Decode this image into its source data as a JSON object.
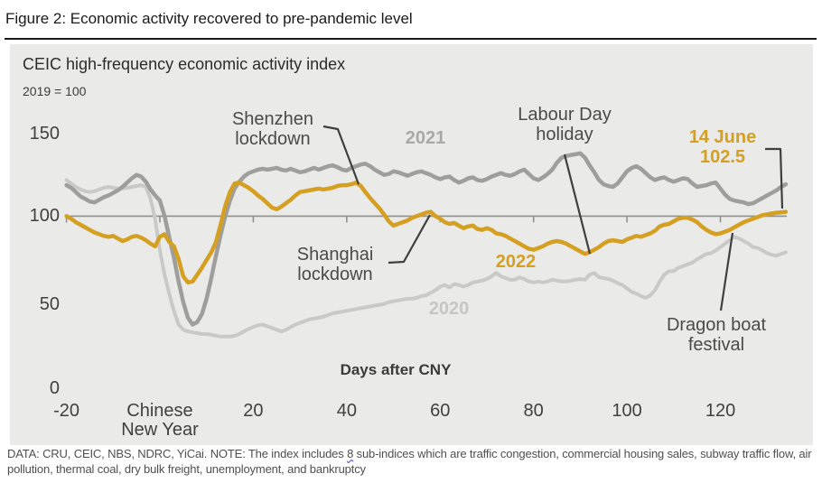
{
  "figure": {
    "title": "Figure 2: Economic activity recovered to pre-pandemic level"
  },
  "footer": {
    "pre": "DATA: CRU, CEIC, NBS, NDRC, YiCai. NOTE: The index includes ",
    "highlight": "8",
    "post": " sub-indices which are traffic congestion, commercial housing sales, subway traffic flow, air pollution, thermal coal, dry bulk freight, unemployment, and bankruptcy"
  },
  "colors": {
    "gold": "#d5a021",
    "gray_2021": "#9e9e9c",
    "gray_2020": "#c9c9c7",
    "axis": "#8f8f8d",
    "annotation_line": "#3f3f3f",
    "panel_bg": "#eaeae8"
  },
  "chart_data": {
    "type": "line",
    "title": "CEIC high-frequency economic activity index",
    "subtitle": "2019 = 100",
    "xlabel": "Days after CNY",
    "x_start": -20,
    "x_step": 1,
    "x_range": [
      -20,
      134
    ],
    "y_range": [
      0,
      157
    ],
    "baseline": 100,
    "grid": false,
    "legend_position": "inline-labels",
    "y_ticks": [
      "150",
      "100",
      "50",
      "0"
    ],
    "y_tick_values": [
      150,
      100,
      50,
      0
    ],
    "x_ticks": [
      {
        "value": -20,
        "label": "-20"
      },
      {
        "value": 0,
        "label": "Chinese\nNew Year"
      },
      {
        "value": 20,
        "label": "20"
      },
      {
        "value": 40,
        "label": "40"
      },
      {
        "value": 60,
        "label": "60"
      },
      {
        "value": 80,
        "label": "80"
      },
      {
        "value": 100,
        "label": "100"
      },
      {
        "value": 120,
        "label": "120"
      }
    ],
    "series": [
      {
        "name": "2020",
        "color": "#c9c9c7",
        "width": 4,
        "values": [
          121,
          119,
          117,
          115.5,
          114.5,
          114,
          114.5,
          115.5,
          116.5,
          117,
          116.5,
          116,
          116,
          116.5,
          117,
          117.5,
          118,
          117,
          110,
          98,
          80,
          66,
          55,
          45,
          37,
          34,
          33,
          32.5,
          32,
          31.5,
          31.5,
          31,
          30.5,
          30,
          30,
          30,
          30.5,
          31.5,
          33,
          34.5,
          35.5,
          36.5,
          37,
          36,
          35,
          34,
          33,
          34,
          35.5,
          37,
          38,
          39,
          40,
          40.5,
          41,
          41.5,
          42.5,
          43.5,
          44,
          44.5,
          45,
          45.5,
          46,
          46.5,
          47,
          47.5,
          48,
          48.5,
          49,
          50,
          50.5,
          51,
          51.5,
          52,
          52,
          52.5,
          53.5,
          54,
          55.5,
          57,
          59,
          60,
          58.5,
          60.5,
          60,
          59,
          60,
          61.5,
          62,
          62.5,
          63.5,
          65,
          67,
          65,
          64,
          63,
          63,
          64.5,
          63.5,
          62,
          61.5,
          62,
          61.5,
          62,
          63,
          62.5,
          62,
          62,
          62.5,
          63,
          63.5,
          63,
          66,
          67,
          64.5,
          64,
          63.5,
          62.5,
          61,
          60,
          58,
          56,
          55,
          53.5,
          52.5,
          54,
          57,
          62,
          66,
          68,
          68,
          70,
          71,
          72,
          73,
          75,
          76.5,
          78,
          78.5,
          80,
          82,
          84,
          86,
          88,
          87,
          85.5,
          84,
          82,
          81.5,
          80,
          78.5,
          77.5,
          77,
          78,
          79
        ]
      },
      {
        "name": "2021",
        "color": "#9e9e9c",
        "width": 4.5,
        "values": [
          118,
          116.5,
          114,
          111.5,
          110,
          108.5,
          108,
          109.5,
          111,
          112,
          113.5,
          115,
          117,
          119.5,
          122,
          124,
          123,
          120,
          115.5,
          112,
          109,
          100,
          88,
          76,
          62,
          50,
          41,
          37,
          38.5,
          43,
          52,
          64,
          77,
          89,
          100,
          109,
          116,
          120,
          123,
          125,
          126,
          127,
          127.5,
          127,
          127.5,
          128,
          127,
          126.5,
          127.5,
          126.5,
          125.5,
          126,
          127,
          128,
          127,
          128,
          129,
          129.5,
          128.5,
          127,
          126.5,
          128,
          129,
          130,
          130.5,
          129,
          127,
          125.5,
          124,
          124.5,
          126,
          125.5,
          124.5,
          123.5,
          124.5,
          125.5,
          126,
          125,
          124,
          122.5,
          121.5,
          122.5,
          123,
          121,
          119.5,
          120.5,
          122,
          122.5,
          121,
          120.5,
          121.5,
          123,
          124,
          125,
          124,
          123.5,
          124.5,
          126,
          127,
          124.5,
          122,
          121,
          122.5,
          124.5,
          127,
          131,
          134,
          135,
          135.5,
          136,
          136.5,
          134,
          129.5,
          125.5,
          121,
          118.5,
          117.5,
          117,
          119,
          122.5,
          126,
          128,
          129,
          127.5,
          125,
          122.5,
          121,
          122,
          122.5,
          121,
          120,
          121,
          122,
          121.5,
          119,
          117,
          117.5,
          118,
          119,
          119.5,
          116,
          112.5,
          110,
          109,
          108.5,
          108,
          107,
          107.5,
          109,
          110.5,
          112,
          113.5,
          115,
          117,
          118.5
        ]
      },
      {
        "name": "2022",
        "color": "#d5a021",
        "width": 4.5,
        "values": [
          100,
          98.5,
          96.5,
          95,
          93.5,
          92,
          90.5,
          89.5,
          88.5,
          88,
          88.5,
          87,
          85.5,
          86.5,
          88,
          88.5,
          87.5,
          86,
          84,
          82.5,
          88,
          89.5,
          85,
          82.5,
          75,
          65,
          61.5,
          62,
          66,
          70,
          74.5,
          79,
          85,
          95,
          106,
          114,
          119,
          119.5,
          118,
          116.5,
          114.5,
          112,
          110,
          107.5,
          105,
          104,
          105.5,
          107.5,
          109.5,
          112,
          114,
          114.5,
          115,
          115.5,
          116,
          115.5,
          116,
          116.5,
          117.5,
          118,
          118,
          118.5,
          119.5,
          117.5,
          114,
          110.5,
          107.5,
          104.5,
          101,
          97,
          94.5,
          95.5,
          96.5,
          97.5,
          99,
          100,
          101,
          102,
          102.5,
          100,
          98.5,
          96.5,
          95.5,
          96,
          94.5,
          93,
          94,
          94.5,
          92.5,
          92,
          93,
          92,
          90,
          89.5,
          88.5,
          87,
          85.5,
          84,
          82.5,
          81,
          80.5,
          81.5,
          82.5,
          84,
          85,
          85.5,
          85,
          84,
          82.5,
          81,
          79.5,
          78,
          79,
          80.5,
          82,
          84,
          85.5,
          86,
          85.5,
          85,
          86.5,
          87.5,
          88.5,
          88,
          89,
          90,
          91.5,
          94,
          95,
          95.5,
          97,
          98.5,
          99,
          99,
          98,
          96.5,
          94,
          92,
          90.5,
          89.5,
          90,
          91,
          92,
          93.5,
          95,
          96.5,
          97.5,
          98.5,
          99.5,
          100.5,
          101,
          101.5,
          102,
          102.2,
          102.5
        ]
      }
    ],
    "annotations": [
      {
        "id": "shenzhen",
        "lines": [
          "Shenzhen",
          "lockdown"
        ],
        "emphasis": false
      },
      {
        "id": "labour-day",
        "lines": [
          "Labour Day",
          "holiday"
        ],
        "emphasis": false
      },
      {
        "id": "june14",
        "lines": [
          "14 June",
          "102.5"
        ],
        "emphasis": true
      },
      {
        "id": "shanghai",
        "lines": [
          "Shanghai",
          "lockdown"
        ],
        "emphasis": false
      },
      {
        "id": "dragon-boat",
        "lines": [
          "Dragon boat",
          "festival"
        ],
        "emphasis": false
      }
    ],
    "end_point": {
      "date": "14 June",
      "value": 102.5
    }
  }
}
